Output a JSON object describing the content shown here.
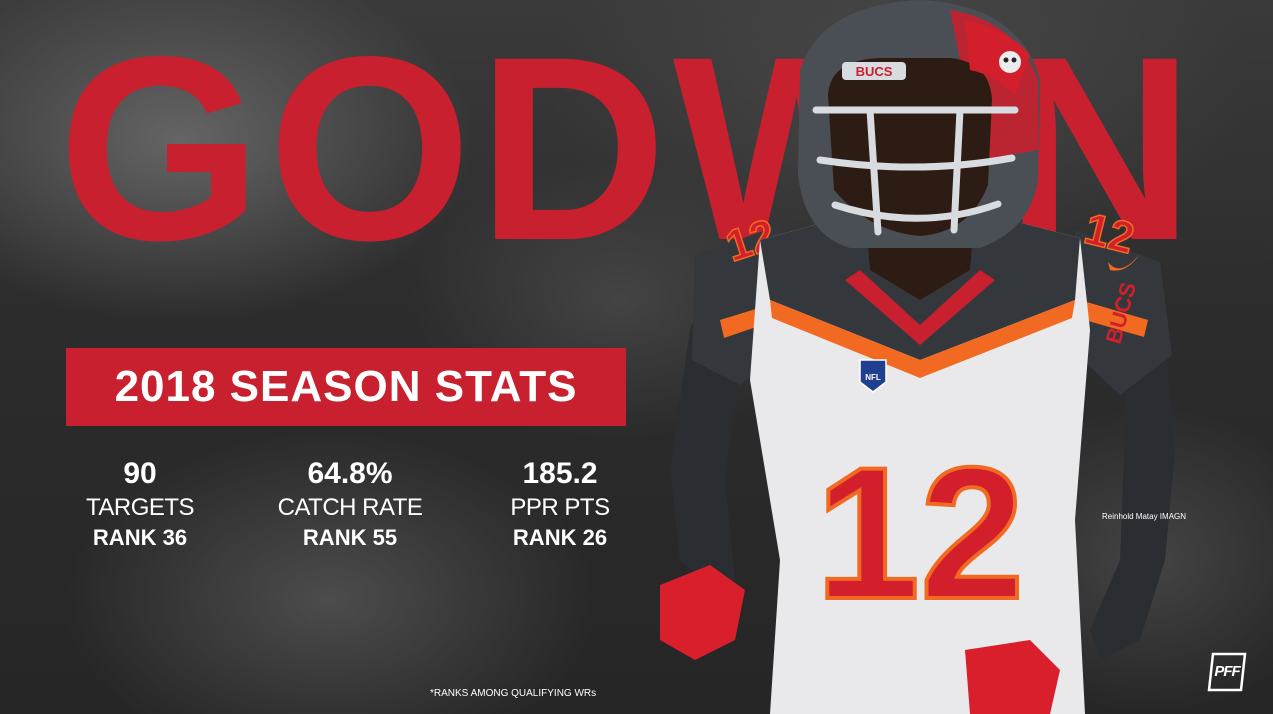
{
  "player": {
    "name": "GODWIN",
    "helmet_text": "BUCS",
    "jersey_number": "12",
    "sleeve_text": "BUCS",
    "shield_text": "NFL"
  },
  "banner": {
    "title": "2018 SEASON STATS"
  },
  "stats": [
    {
      "value": "90",
      "label": "TARGETS",
      "rank": "RANK 36"
    },
    {
      "value": "64.8%",
      "label": "CATCH RATE",
      "rank": "RANK 55"
    },
    {
      "value": "185.2",
      "label": "PPR PTS",
      "rank": "RANK 26"
    }
  ],
  "photo_credit": "Reinhold Matay IMAGN",
  "footnote": "*RANKS AMONG QUALIFYING WRs",
  "brand": {
    "logo_text": "PFF"
  },
  "colors": {
    "brand_red": "#c8202e",
    "jersey_pewter": "#34383d",
    "accent_orange": "#f26a21",
    "background": "#2e2e2e",
    "text": "#ffffff"
  },
  "icons": {
    "logo": "pff-logo-icon",
    "helmet_decal": "buccaneers-flag-icon",
    "shield": "nfl-shield-icon",
    "swoosh": "nike-swoosh-icon"
  }
}
